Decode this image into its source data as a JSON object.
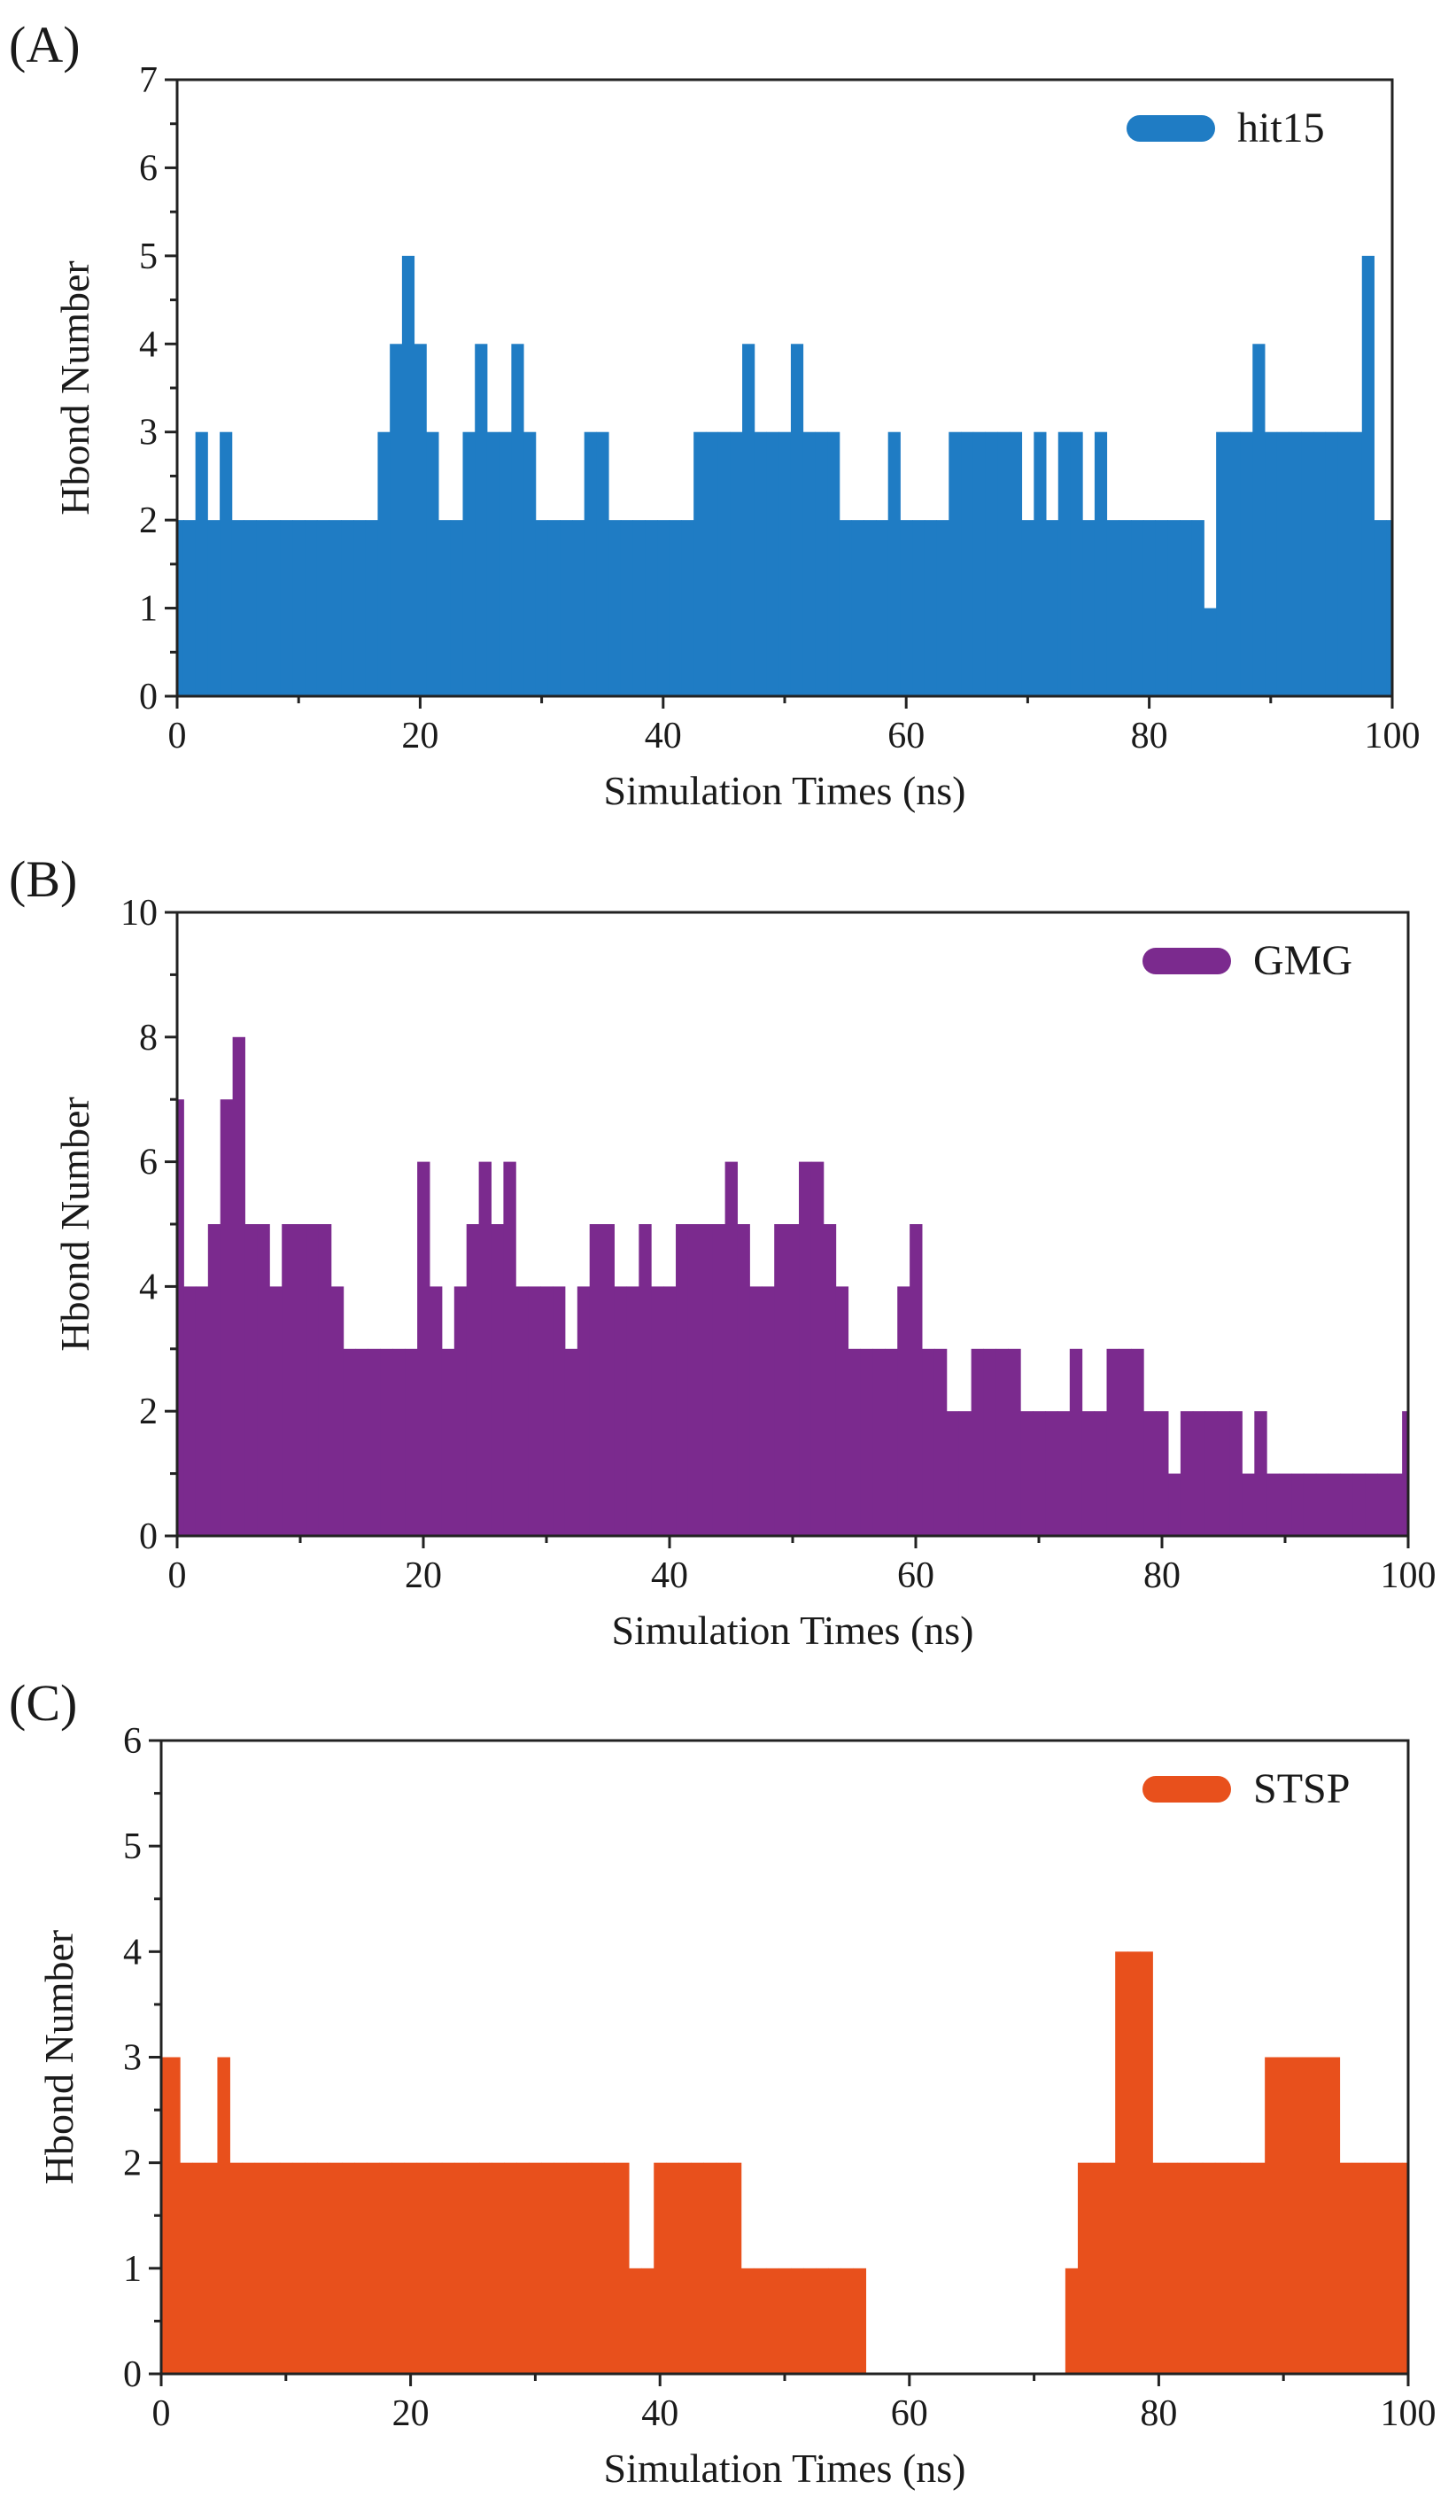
{
  "chart_data": [
    {
      "type": "bar",
      "panel_label": "(A)",
      "xlabel": "Simulation Times (ns)",
      "ylabel": "Hbond Number",
      "xlim": [
        0,
        100
      ],
      "ylim": [
        0,
        7
      ],
      "xticks": [
        "0",
        "20",
        "40",
        "60",
        "80",
        "100"
      ],
      "yticks": [
        "0",
        "1",
        "2",
        "3",
        "4",
        "5",
        "6",
        "7"
      ],
      "legend_position": "top-right",
      "series": [
        {
          "name": "hit15",
          "color": "#1f7cc4",
          "x": [
            0,
            1,
            2,
            3,
            4,
            5,
            6,
            7,
            8,
            9,
            10,
            11,
            12,
            13,
            14,
            15,
            16,
            17,
            18,
            19,
            20,
            21,
            22,
            23,
            24,
            25,
            26,
            27,
            28,
            29,
            30,
            31,
            32,
            33,
            34,
            35,
            36,
            37,
            38,
            39,
            40,
            41,
            42,
            43,
            44,
            45,
            46,
            47,
            48,
            49,
            50,
            51,
            52,
            53,
            54,
            55,
            56,
            57,
            58,
            59,
            60,
            61,
            62,
            63,
            64,
            65,
            66,
            67,
            68,
            69,
            70,
            71,
            72,
            73,
            74,
            75,
            76,
            77,
            78,
            79,
            80,
            81,
            82,
            83,
            84,
            85,
            86,
            87,
            88,
            89,
            90,
            91,
            92,
            93,
            94,
            95,
            96,
            97,
            98,
            99,
            100
          ],
          "values": [
            2,
            2,
            3,
            2,
            3,
            2,
            2,
            2,
            2,
            2,
            2,
            2,
            2,
            2,
            2,
            2,
            2,
            3,
            4,
            5,
            4,
            3,
            2,
            2,
            3,
            4,
            3,
            3,
            4,
            3,
            2,
            2,
            2,
            2,
            3,
            3,
            2,
            2,
            2,
            2,
            2,
            2,
            2,
            3,
            3,
            3,
            3,
            4,
            3,
            3,
            3,
            4,
            3,
            3,
            3,
            2,
            2,
            2,
            2,
            3,
            2,
            2,
            2,
            2,
            3,
            3,
            3,
            3,
            3,
            3,
            2,
            3,
            2,
            3,
            3,
            2,
            3,
            2,
            2,
            2,
            2,
            2,
            2,
            2,
            2,
            1,
            3,
            3,
            3,
            4,
            3,
            3,
            3,
            3,
            3,
            3,
            3,
            3,
            5,
            2,
            2
          ]
        }
      ]
    },
    {
      "type": "bar",
      "panel_label": "(B)",
      "xlabel": "Simulation Times (ns)",
      "ylabel": "Hbond Number",
      "xlim": [
        0,
        100
      ],
      "ylim": [
        0,
        10
      ],
      "xticks": [
        "0",
        "20",
        "40",
        "60",
        "80",
        "100"
      ],
      "yticks": [
        "0",
        "2",
        "4",
        "6",
        "8",
        "10"
      ],
      "legend_position": "top-right",
      "series": [
        {
          "name": "GMG",
          "color": "#7b2a8e",
          "x": [
            0,
            1,
            2,
            3,
            4,
            5,
            6,
            7,
            8,
            9,
            10,
            11,
            12,
            13,
            14,
            15,
            16,
            17,
            18,
            19,
            20,
            21,
            22,
            23,
            24,
            25,
            26,
            27,
            28,
            29,
            30,
            31,
            32,
            33,
            34,
            35,
            36,
            37,
            38,
            39,
            40,
            41,
            42,
            43,
            44,
            45,
            46,
            47,
            48,
            49,
            50,
            51,
            52,
            53,
            54,
            55,
            56,
            57,
            58,
            59,
            60,
            61,
            62,
            63,
            64,
            65,
            66,
            67,
            68,
            69,
            70,
            71,
            72,
            73,
            74,
            75,
            76,
            77,
            78,
            79,
            80,
            81,
            82,
            83,
            84,
            85,
            86,
            87,
            88,
            89,
            90,
            91,
            92,
            93,
            94,
            95,
            96,
            97,
            98,
            99,
            100
          ],
          "values": [
            7,
            4,
            4,
            5,
            7,
            8,
            5,
            5,
            4,
            5,
            5,
            5,
            5,
            4,
            3,
            3,
            3,
            3,
            3,
            3,
            6,
            4,
            3,
            4,
            5,
            6,
            5,
            6,
            4,
            4,
            4,
            4,
            3,
            4,
            5,
            5,
            4,
            4,
            5,
            4,
            4,
            5,
            5,
            5,
            5,
            6,
            5,
            4,
            4,
            5,
            5,
            6,
            6,
            5,
            4,
            3,
            3,
            3,
            3,
            4,
            5,
            3,
            3,
            2,
            2,
            3,
            3,
            3,
            3,
            2,
            2,
            2,
            2,
            3,
            2,
            2,
            3,
            3,
            3,
            2,
            2,
            1,
            2,
            2,
            2,
            2,
            2,
            1,
            2,
            1,
            1,
            1,
            1,
            1,
            1,
            1,
            1,
            1,
            1,
            1,
            2
          ]
        }
      ]
    },
    {
      "type": "bar",
      "panel_label": "(C)",
      "xlabel": "Simulation Times (ns)",
      "ylabel": "Hbond Number",
      "xlim": [
        0,
        100
      ],
      "ylim": [
        0,
        6
      ],
      "xticks": [
        "0",
        "20",
        "40",
        "60",
        "80",
        "100"
      ],
      "yticks": [
        "0",
        "1",
        "2",
        "3",
        "4",
        "5",
        "6"
      ],
      "legend_position": "top-right",
      "series": [
        {
          "name": "STSP",
          "color": "#e8501c",
          "x": [
            0,
            1,
            2,
            3,
            4,
            5,
            6,
            7,
            8,
            9,
            10,
            11,
            12,
            13,
            14,
            15,
            16,
            17,
            18,
            19,
            20,
            21,
            22,
            23,
            24,
            25,
            26,
            27,
            28,
            29,
            30,
            31,
            32,
            33,
            34,
            35,
            36,
            37,
            38,
            39,
            40,
            41,
            42,
            43,
            44,
            45,
            46,
            47,
            48,
            49,
            50,
            51,
            52,
            53,
            54,
            55,
            56,
            57,
            58,
            59,
            60,
            61,
            62,
            63,
            64,
            65,
            66,
            67,
            68,
            69,
            70,
            71,
            72,
            73,
            74,
            75,
            76,
            77,
            78,
            79,
            80,
            81,
            82,
            83,
            84,
            85,
            86,
            87,
            88,
            89,
            90,
            91,
            92,
            93,
            94,
            95,
            96,
            97,
            98,
            99,
            100
          ],
          "values": [
            3,
            3,
            2,
            2,
            2,
            3,
            2,
            2,
            2,
            2,
            2,
            2,
            2,
            2,
            2,
            2,
            2,
            2,
            2,
            2,
            2,
            2,
            2,
            2,
            2,
            2,
            2,
            2,
            2,
            2,
            2,
            2,
            2,
            2,
            2,
            2,
            2,
            2,
            1,
            1,
            2,
            2,
            2,
            2,
            2,
            2,
            2,
            1,
            1,
            1,
            1,
            1,
            1,
            1,
            1,
            1,
            1,
            0,
            0,
            0,
            0,
            0,
            0,
            0,
            0,
            0,
            0,
            0,
            0,
            0,
            0,
            0,
            0,
            1,
            2,
            2,
            2,
            4,
            4,
            4,
            2,
            2,
            2,
            2,
            2,
            2,
            2,
            2,
            2,
            3,
            3,
            3,
            3,
            3,
            3,
            2,
            2,
            2,
            2,
            2,
            2
          ]
        }
      ]
    }
  ]
}
